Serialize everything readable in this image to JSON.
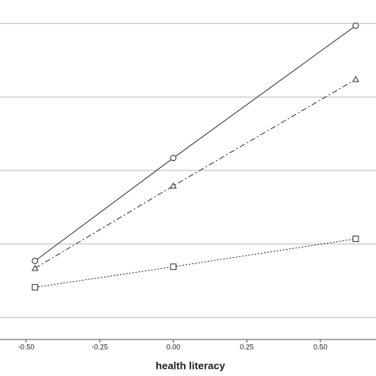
{
  "chart_data": {
    "type": "line",
    "x_label": "health literacy",
    "xlim": [
      -0.589,
      0.689
    ],
    "xticks": [
      {
        "value": -0.5,
        "label": "-0.50"
      },
      {
        "value": -0.25,
        "label": "-0.25"
      },
      {
        "value": 0,
        "label": "0.00"
      },
      {
        "value": 0.25,
        "label": "0.25"
      },
      {
        "value": 0.5,
        "label": "0.50"
      }
    ],
    "ylim": [
      0.7,
      5.32
    ],
    "yticks": [
      1,
      2,
      3,
      4,
      5
    ],
    "grid": true,
    "x": [
      -0.47,
      0.0,
      0.62
    ],
    "series": [
      {
        "color": "#333333",
        "dash": "solid",
        "marker": "circle",
        "values": [
          1.77,
          3.17,
          4.97
        ]
      },
      {
        "color": "#333333",
        "dash": "dashdot",
        "marker": "triangle",
        "values": [
          1.67,
          2.79,
          4.24
        ]
      },
      {
        "color": "#333333",
        "dash": "dotted",
        "marker": "square",
        "values": [
          1.41,
          1.69,
          2.07
        ]
      }
    ]
  }
}
